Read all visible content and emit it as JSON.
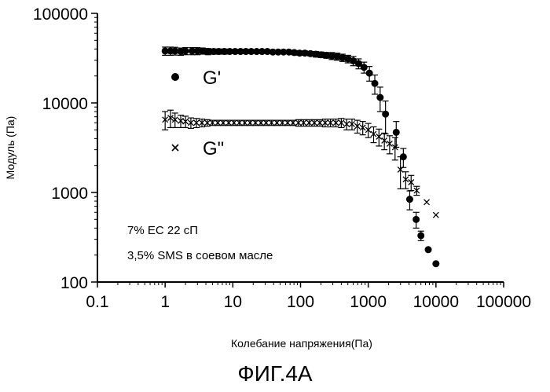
{
  "chart_data": {
    "type": "scatter",
    "x_scale": "log",
    "y_scale": "log",
    "xlabel": "Колебание напряжения(Па)",
    "ylabel": "Модуль (Па)",
    "xlim": [
      0.1,
      100000
    ],
    "ylim": [
      100,
      100000
    ],
    "x_ticks": [
      0.1,
      1,
      10,
      100,
      1000,
      10000,
      100000
    ],
    "x_tick_labels": [
      "0.1",
      "1",
      "10",
      "100",
      "1000",
      "10000",
      "100000"
    ],
    "y_ticks": [
      100,
      1000,
      10000,
      100000
    ],
    "y_tick_labels": [
      "100",
      "1000",
      "10000",
      "100000"
    ],
    "grid": false,
    "legend_position": "upper-left inside",
    "annotations": [
      "7% ЕС 22 сП",
      "3,5% SMS в соевом масле"
    ],
    "caption": "ФИГ.4А",
    "series": [
      {
        "name": "G'",
        "marker": "filled-circle",
        "points": [
          [
            1,
            38000,
            4000
          ],
          [
            1.2,
            38000,
            4000
          ],
          [
            1.4,
            38000,
            3800
          ],
          [
            1.7,
            37500,
            3500
          ],
          [
            2,
            38000,
            3500
          ],
          [
            2.5,
            38000,
            3500
          ],
          [
            3,
            38000,
            3500
          ],
          [
            3.6,
            38000,
            3000
          ],
          [
            4.3,
            37500,
            3000
          ],
          [
            5.2,
            37500,
            2500
          ],
          [
            6.2,
            37500,
            2500
          ],
          [
            7.5,
            37500,
            2500
          ],
          [
            9,
            37500,
            2000
          ],
          [
            10.8,
            37500,
            2000
          ],
          [
            13,
            37500,
            2000
          ],
          [
            15.6,
            37500,
            2000
          ],
          [
            18.7,
            37500,
            1500
          ],
          [
            22.5,
            37500,
            1500
          ],
          [
            27,
            37500,
            1500
          ],
          [
            32.4,
            37500,
            1500
          ],
          [
            39,
            37000,
            1500
          ],
          [
            46.7,
            37000,
            1500
          ],
          [
            56,
            37000,
            1500
          ],
          [
            67.3,
            37000,
            1500
          ],
          [
            80.8,
            36500,
            2000
          ],
          [
            97,
            36000,
            2000
          ],
          [
            116,
            36000,
            2000
          ],
          [
            140,
            35500,
            2000
          ],
          [
            168,
            35000,
            2500
          ],
          [
            201,
            34500,
            2500
          ],
          [
            241,
            34000,
            2500
          ],
          [
            290,
            33500,
            3000
          ],
          [
            348,
            33000,
            3000
          ],
          [
            417,
            32000,
            3000
          ],
          [
            501,
            31000,
            3000
          ],
          [
            601,
            29500,
            3500
          ],
          [
            721,
            27500,
            3500
          ],
          [
            866,
            25000,
            3500
          ],
          [
            1040,
            21500,
            4000
          ],
          [
            1250,
            16500,
            4000
          ],
          [
            1500,
            11500,
            3500
          ],
          [
            1800,
            7500,
            3000
          ],
          [
            2590,
            4700,
            1500
          ],
          [
            3300,
            2500,
            600
          ],
          [
            4100,
            840,
            200
          ],
          [
            5100,
            500,
            100
          ],
          [
            6000,
            330,
            40
          ],
          [
            7700,
            230,
            0
          ],
          [
            10000,
            160,
            0
          ]
        ]
      },
      {
        "name": "G\"",
        "marker": "cross",
        "points": [
          [
            1,
            6500,
            1500
          ],
          [
            1.2,
            6800,
            1500
          ],
          [
            1.4,
            6500,
            1200
          ],
          [
            1.7,
            6300,
            1000
          ],
          [
            2,
            6200,
            900
          ],
          [
            2.4,
            6000,
            800
          ],
          [
            2.9,
            6000,
            700
          ],
          [
            3.5,
            6000,
            600
          ],
          [
            4.2,
            6000,
            500
          ],
          [
            5,
            6000,
            400
          ],
          [
            6,
            6000,
            400
          ],
          [
            7.2,
            6000,
            400
          ],
          [
            8.7,
            6000,
            400
          ],
          [
            10.4,
            6000,
            400
          ],
          [
            12.5,
            6000,
            400
          ],
          [
            15,
            6000,
            400
          ],
          [
            18,
            6000,
            400
          ],
          [
            21.6,
            6000,
            400
          ],
          [
            26,
            6000,
            400
          ],
          [
            31,
            6000,
            400
          ],
          [
            37.3,
            6000,
            400
          ],
          [
            44.8,
            6000,
            400
          ],
          [
            53.8,
            6000,
            400
          ],
          [
            64.5,
            6000,
            400
          ],
          [
            77.4,
            6000,
            400
          ],
          [
            93,
            6000,
            500
          ],
          [
            111,
            6000,
            500
          ],
          [
            134,
            6000,
            500
          ],
          [
            160,
            6000,
            500
          ],
          [
            193,
            6000,
            500
          ],
          [
            231,
            6000,
            600
          ],
          [
            277,
            6000,
            600
          ],
          [
            333,
            6000,
            600
          ],
          [
            400,
            6000,
            700
          ],
          [
            480,
            5800,
            800
          ],
          [
            575,
            5800,
            800
          ],
          [
            690,
            5500,
            900
          ],
          [
            830,
            5300,
            900
          ],
          [
            1000,
            5000,
            900
          ],
          [
            1200,
            4500,
            900
          ],
          [
            1440,
            4200,
            900
          ],
          [
            1730,
            3800,
            800
          ],
          [
            2070,
            3500,
            800
          ],
          [
            2490,
            3200,
            900
          ],
          [
            2990,
            1800,
            700
          ],
          [
            3580,
            1400,
            300
          ],
          [
            4300,
            1300,
            250
          ],
          [
            5200,
            1050,
            120
          ],
          [
            7300,
            780,
            0
          ],
          [
            10000,
            560,
            0
          ]
        ]
      }
    ]
  }
}
